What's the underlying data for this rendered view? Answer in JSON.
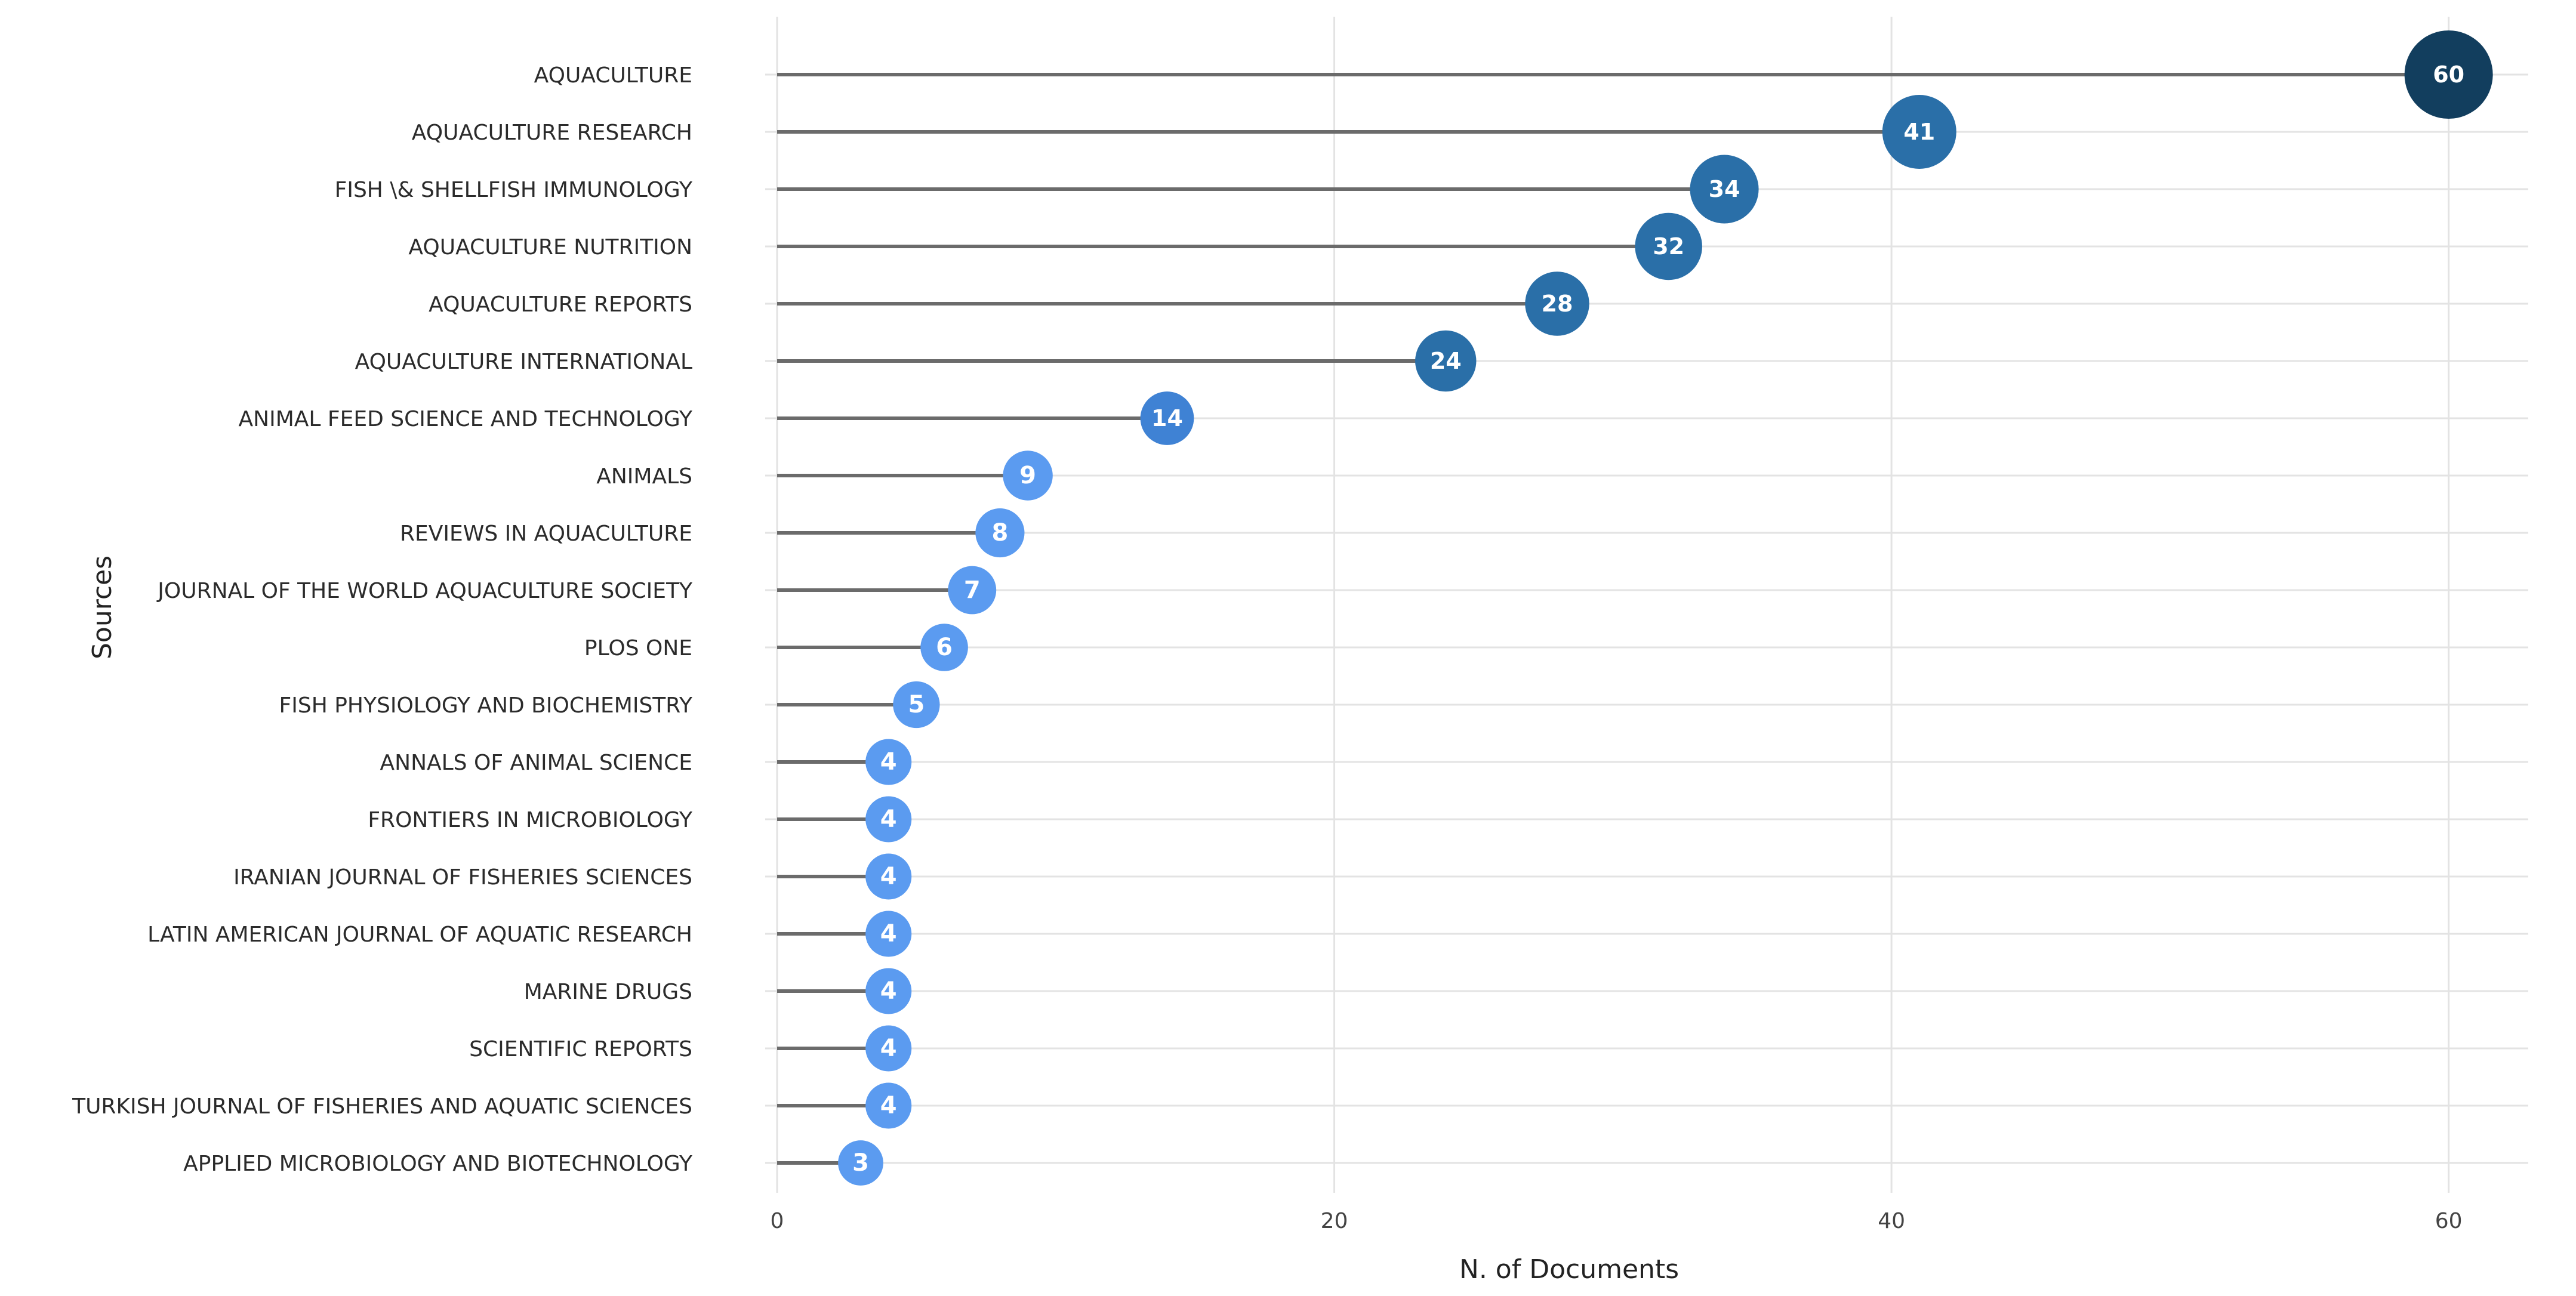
{
  "chart_data": {
    "type": "scatter",
    "variant": "lollipop",
    "xlabel": "N. of Documents",
    "ylabel": "Sources",
    "xlim": [
      0,
      62
    ],
    "xticks": [
      0,
      20,
      40,
      60
    ],
    "grid": true,
    "categories": [
      "AQUACULTURE",
      "AQUACULTURE RESEARCH",
      "FISH \\& SHELLFISH IMMUNOLOGY",
      "AQUACULTURE NUTRITION",
      "AQUACULTURE REPORTS",
      "AQUACULTURE INTERNATIONAL",
      "ANIMAL FEED SCIENCE AND TECHNOLOGY",
      "ANIMALS",
      "REVIEWS IN AQUACULTURE",
      "JOURNAL OF THE WORLD AQUACULTURE SOCIETY",
      "PLOS ONE",
      "FISH PHYSIOLOGY AND BIOCHEMISTRY",
      "ANNALS OF ANIMAL SCIENCE",
      "FRONTIERS IN MICROBIOLOGY",
      "IRANIAN JOURNAL OF FISHERIES SCIENCES",
      "LATIN AMERICAN JOURNAL OF AQUATIC RESEARCH",
      "MARINE DRUGS",
      "SCIENTIFIC REPORTS",
      "TURKISH JOURNAL OF FISHERIES AND AQUATIC SCIENCES",
      "APPLIED MICROBIOLOGY AND BIOTECHNOLOGY"
    ],
    "values": [
      60,
      41,
      34,
      32,
      28,
      24,
      14,
      9,
      8,
      7,
      6,
      5,
      4,
      4,
      4,
      4,
      4,
      4,
      4,
      3
    ],
    "colors": {
      "stem": "#6b6b6b",
      "grid": "#e3e3e3",
      "scale": [
        "#5b9bf0",
        "#3f82d4",
        "#2a6fa8",
        "#123e5e"
      ]
    }
  }
}
